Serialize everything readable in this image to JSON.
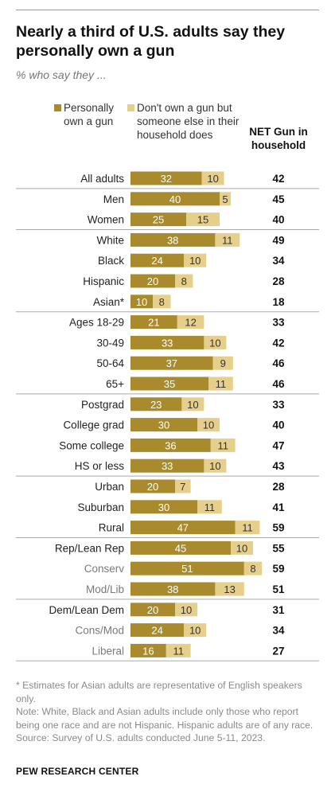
{
  "header": {
    "title": "Nearly a third of U.S. adults say they personally own a gun",
    "subtitle": "% who say they ..."
  },
  "legend": {
    "personal": "Personally own a gun",
    "household": "Don't own a gun but someone else in their household does",
    "net": "NET Gun in household"
  },
  "colors": {
    "personal": "#a98a2c",
    "household": "#e6cf8a",
    "divider": "#aaaaaa"
  },
  "chart_data": {
    "type": "bar",
    "stacked": true,
    "orientation": "horizontal",
    "categories": [
      "All adults",
      "Men",
      "Women",
      "White",
      "Black",
      "Hispanic",
      "Asian*",
      "Ages 18-29",
      "30-49",
      "50-64",
      "65+",
      "Postgrad",
      "College grad",
      "Some college",
      "HS or less",
      "Urban",
      "Suburban",
      "Rural",
      "Rep/Lean Rep",
      "Conserv",
      "Mod/Lib",
      "Dem/Lean Dem",
      "Cons/Mod",
      "Liberal"
    ],
    "series": [
      {
        "name": "Personally own a gun",
        "values": [
          32,
          40,
          25,
          38,
          24,
          20,
          10,
          21,
          33,
          37,
          35,
          23,
          30,
          36,
          33,
          20,
          30,
          47,
          45,
          51,
          38,
          20,
          24,
          16
        ]
      },
      {
        "name": "Don't own a gun but someone else in their household does",
        "values": [
          10,
          5,
          15,
          11,
          10,
          8,
          8,
          12,
          10,
          9,
          11,
          10,
          10,
          11,
          10,
          7,
          11,
          11,
          10,
          8,
          13,
          10,
          10,
          11
        ]
      }
    ],
    "net": [
      42,
      45,
      40,
      49,
      34,
      28,
      18,
      33,
      42,
      46,
      46,
      33,
      40,
      47,
      43,
      28,
      41,
      59,
      55,
      59,
      51,
      31,
      34,
      27
    ],
    "net_label": "NET Gun in household",
    "group_ends": [
      0,
      2,
      6,
      10,
      14,
      17,
      20
    ]
  },
  "footnotes": [
    "* Estimates for Asian adults are representative of English speakers only.",
    "Note: White, Black and Asian adults include only those who report being one race and are not Hispanic. Hispanic adults are of any race.",
    "Source: Survey of U.S. adults conducted June 5-11, 2023."
  ],
  "brand": "PEW RESEARCH CENTER"
}
